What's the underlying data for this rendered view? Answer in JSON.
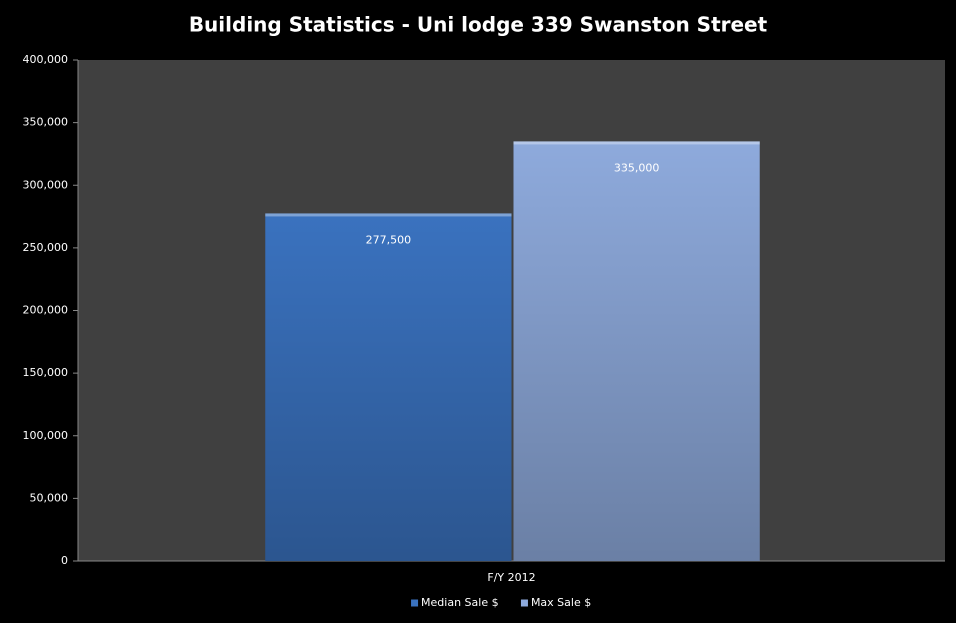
{
  "chart_data": {
    "type": "bar",
    "title": "Building Statistics - Uni lodge 339 Swanston Street",
    "categories": [
      "F/Y 2012"
    ],
    "series": [
      {
        "name": "Median Sale $",
        "color": "#3a72bf",
        "values": [
          277500
        ],
        "value_labels": [
          "277,500"
        ]
      },
      {
        "name": "Max Sale $",
        "color": "#8eaadc",
        "values": [
          335000
        ],
        "value_labels": [
          "335,000"
        ]
      }
    ],
    "ylim": [
      0,
      400000
    ],
    "yticks": [
      0,
      {
        "value": 50000,
        "label": "50,000"
      },
      {
        "value": 100000,
        "label": "100,000"
      },
      {
        "value": 150000,
        "label": "150,000"
      },
      {
        "value": 200000,
        "label": "200,000"
      },
      {
        "value": 250000,
        "label": "250,000"
      },
      {
        "value": 300000,
        "label": "300,000"
      },
      {
        "value": 350000,
        "label": "350,000"
      },
      {
        "value": 400000,
        "label": "400,000"
      }
    ],
    "grid": false,
    "legend": "bottom"
  }
}
